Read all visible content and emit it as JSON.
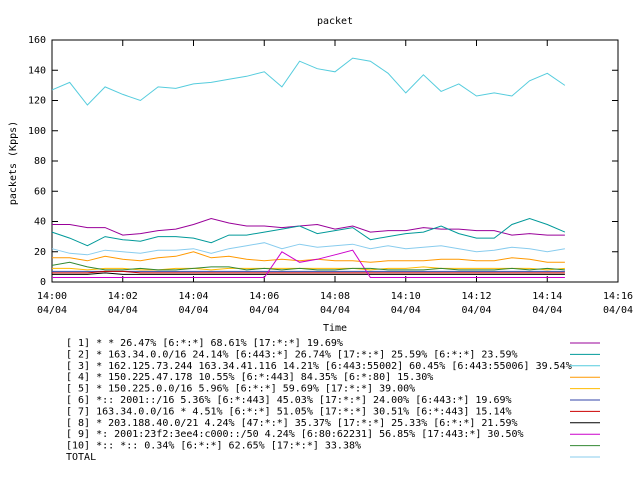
{
  "chart_data": {
    "type": "line",
    "title": "packet",
    "xlabel": "Time",
    "ylabel": "packets (Kpps)",
    "ylim": [
      0,
      160
    ],
    "yticks": [
      0,
      20,
      40,
      60,
      80,
      100,
      120,
      140,
      160
    ],
    "xlim": [
      "14:00",
      "14:16"
    ],
    "xticks": [
      {
        "time": "14:00",
        "date": "04/04"
      },
      {
        "time": "14:02",
        "date": "04/04"
      },
      {
        "time": "14:04",
        "date": "04/04"
      },
      {
        "time": "14:06",
        "date": "04/04"
      },
      {
        "time": "14:08",
        "date": "04/04"
      },
      {
        "time": "14:10",
        "date": "04/04"
      },
      {
        "time": "14:12",
        "date": "04/04"
      },
      {
        "time": "14:14",
        "date": "04/04"
      },
      {
        "time": "14:16",
        "date": "04/04"
      }
    ],
    "grid": false,
    "legend_position": "bottom",
    "x": [
      "14:00:00",
      "14:00:30",
      "14:01:00",
      "14:01:30",
      "14:02:00",
      "14:02:30",
      "14:03:00",
      "14:03:30",
      "14:04:00",
      "14:04:30",
      "14:05:00",
      "14:05:30",
      "14:06:00",
      "14:06:30",
      "14:07:00",
      "14:07:30",
      "14:08:00",
      "14:08:30",
      "14:09:00",
      "14:09:30",
      "14:10:00",
      "14:10:30",
      "14:11:00",
      "14:11:30",
      "14:12:00",
      "14:12:30",
      "14:13:00",
      "14:13:30",
      "14:14:00",
      "14:14:30"
    ],
    "series": [
      {
        "name": "[ 1] * * 26.47%  [6:*:*] 68.61% [17:*:*] 19.69%",
        "color": "#990099",
        "values": [
          38,
          38,
          36,
          36,
          31,
          32,
          34,
          35,
          38,
          42,
          39,
          37,
          37,
          36,
          37,
          38,
          35,
          37,
          33,
          34,
          34,
          36,
          35,
          35,
          34,
          34,
          31,
          32,
          31,
          31
        ]
      },
      {
        "name": "[ 2] * 163.34.0.0/16 24.14%  [6:443:*] 26.74% [17:*:*] 25.59% [6:*:*] 23.59%",
        "color": "#009999",
        "values": [
          33,
          29,
          24,
          30,
          28,
          27,
          30,
          30,
          29,
          26,
          31,
          31,
          33,
          35,
          37,
          32,
          34,
          36,
          28,
          30,
          32,
          33,
          37,
          32,
          29,
          29,
          38,
          42,
          38,
          33
        ]
      },
      {
        "name": "[ 3] * 162.125.73.244 163.34.41.116 14.21%  [6:443:55002] 60.45% [6:443:55006] 39.54%",
        "color": "#55ccdd",
        "values": [
          127,
          132,
          117,
          129,
          124,
          120,
          129,
          128,
          131,
          132,
          134,
          136,
          139,
          129,
          146,
          141,
          139,
          148,
          146,
          138,
          125,
          137,
          126,
          131,
          123,
          125,
          123,
          133,
          138,
          130
        ]
      },
      {
        "name": "[ 4] * 150.225.47.178 10.55%  [6:*:443] 84.35% [6:*:80] 15.30%",
        "color": "#ff9900",
        "values": [
          16,
          16,
          14,
          17,
          15,
          14,
          16,
          17,
          20,
          16,
          17,
          15,
          14,
          15,
          14,
          15,
          14,
          14,
          13,
          14,
          14,
          14,
          15,
          15,
          14,
          14,
          16,
          15,
          13,
          13
        ]
      },
      {
        "name": "[ 5] * 150.225.0.0/16 5.96%  [6:*:*] 59.69% [17:*:*] 39.00%",
        "color": "#ffbb00",
        "values": [
          9,
          9,
          8,
          9,
          9,
          8,
          8,
          9,
          9,
          8,
          9,
          9,
          9,
          9,
          9,
          9,
          9,
          9,
          8,
          9,
          9,
          10,
          9,
          9,
          9,
          9,
          9,
          9,
          8,
          9
        ]
      },
      {
        "name": "[ 6] *:: 2001::/16 5.36%  [6:*:443] 45.03% [17:*:*] 24.00% [6:443:*] 19.69%",
        "color": "#3344aa",
        "values": [
          7,
          7,
          7,
          7,
          7,
          7,
          7,
          7,
          7,
          7,
          7,
          7,
          7,
          7,
          7,
          7,
          7,
          7,
          7,
          7,
          7,
          7,
          7,
          7,
          7,
          7,
          7,
          7,
          7,
          7
        ]
      },
      {
        "name": "[ 7] 163.34.0.0/16 * 4.51%  [6:*:*] 51.05% [17:*:*] 30.51% [6:*:443] 15.14%",
        "color": "#cc0000",
        "values": [
          6,
          6,
          6,
          7,
          7,
          6,
          6,
          6,
          6,
          6,
          6,
          6,
          6,
          6,
          6,
          6,
          6,
          6,
          6,
          6,
          6,
          6,
          6,
          6,
          6,
          6,
          6,
          6,
          6,
          6
        ]
      },
      {
        "name": "[ 8] * 203.188.40.0/21 4.24%  [47:*:*] 35.37% [17:*:*] 25.33% [6:*:*] 21.59%",
        "color": "#000000",
        "values": [
          5,
          5,
          5,
          6,
          5,
          5,
          5,
          5,
          5,
          5,
          5,
          5,
          5,
          5,
          5,
          5,
          5,
          5,
          5,
          5,
          5,
          5,
          5,
          5,
          5,
          5,
          5,
          5,
          5,
          5
        ]
      },
      {
        "name": "[ 9] *: 2001:23f2:3ee4:c000::/50 4.24%  [6:80:62231] 56.85% [17:443:*] 30.50%",
        "color": "#cc00cc",
        "values": [
          3,
          3,
          3,
          3,
          3,
          3,
          3,
          3,
          3,
          3,
          3,
          3,
          3,
          20,
          13,
          15,
          18,
          21,
          3,
          3,
          3,
          3,
          3,
          3,
          3,
          3,
          3,
          3,
          3,
          3
        ]
      },
      {
        "name": "[10] *:: *:: 0.34%  [6:*:*] 62.65% [17:*:*] 33.38%",
        "color": "#338833",
        "values": [
          11,
          13,
          10,
          8,
          8,
          9,
          8,
          8,
          9,
          10,
          10,
          8,
          9,
          8,
          9,
          8,
          8,
          9,
          9,
          8,
          8,
          8,
          9,
          8,
          8,
          8,
          9,
          8,
          9,
          8
        ]
      },
      {
        "name": "TOTAL",
        "color": "#88ccee",
        "values": [
          22,
          19,
          18,
          21,
          20,
          19,
          21,
          21,
          22,
          19,
          22,
          24,
          26,
          22,
          25,
          23,
          24,
          25,
          22,
          24,
          22,
          23,
          24,
          22,
          20,
          21,
          23,
          22,
          20,
          22
        ]
      }
    ]
  }
}
